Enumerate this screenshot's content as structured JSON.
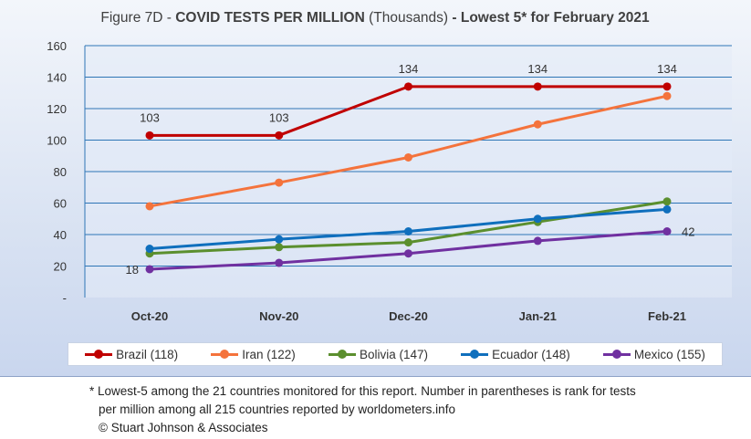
{
  "title": {
    "prefix": "Figure 7D - ",
    "main": "COVID TESTS PER MILLION",
    "unit": " (Thousands)",
    "suffix": " - Lowest 5* for February 2021"
  },
  "chart_data": {
    "type": "line",
    "categories": [
      "Oct-20",
      "Nov-20",
      "Dec-20",
      "Jan-21",
      "Feb-21"
    ],
    "ylim": [
      0,
      160
    ],
    "yticks": [
      "-",
      "20",
      "40",
      "60",
      "80",
      "100",
      "120",
      "140",
      "160"
    ],
    "ytick_values": [
      0,
      20,
      40,
      60,
      80,
      100,
      120,
      140,
      160
    ],
    "grid": true,
    "legend_position": "bottom",
    "series": [
      {
        "name": "Brazil (118)",
        "color": "#c00000",
        "values": [
          103,
          103,
          134,
          134,
          134
        ]
      },
      {
        "name": "Iran (122)",
        "color": "#f4733c",
        "values": [
          58,
          73,
          89,
          110,
          128
        ]
      },
      {
        "name": "Bolivia (147)",
        "color": "#5b8f2e",
        "values": [
          28,
          32,
          35,
          48,
          61
        ]
      },
      {
        "name": "Ecuador (148)",
        "color": "#0f6fbd",
        "values": [
          31,
          37,
          42,
          50,
          56
        ]
      },
      {
        "name": "Mexico (155)",
        "color": "#7030a0",
        "values": [
          18,
          22,
          28,
          36,
          42
        ]
      }
    ],
    "data_labels": [
      {
        "series": 0,
        "index": 0,
        "text": "103",
        "placement": "above"
      },
      {
        "series": 0,
        "index": 1,
        "text": "103",
        "placement": "above"
      },
      {
        "series": 0,
        "index": 2,
        "text": "134",
        "placement": "above"
      },
      {
        "series": 0,
        "index": 3,
        "text": "134",
        "placement": "above"
      },
      {
        "series": 0,
        "index": 4,
        "text": "134",
        "placement": "above"
      },
      {
        "series": 4,
        "index": 0,
        "text": "18",
        "placement": "left"
      },
      {
        "series": 4,
        "index": 4,
        "text": "42",
        "placement": "right"
      }
    ]
  },
  "footnote": {
    "line1": "* Lowest-5 among the 21 countries monitored for this report. Number in parentheses is rank for tests",
    "line2": "per million among all 215 countries reported by worldometers.info",
    "line3": "© Stuart Johnson & Associates"
  }
}
